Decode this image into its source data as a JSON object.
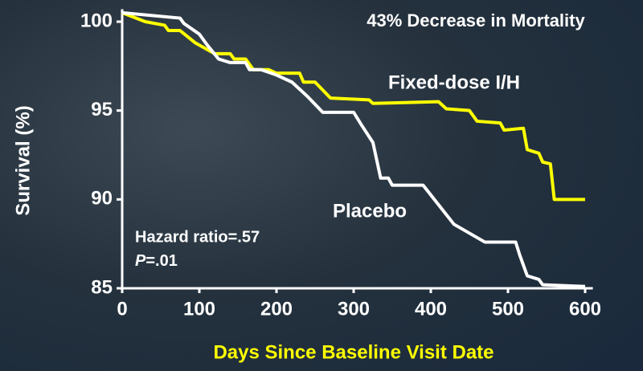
{
  "chart_data": {
    "type": "line",
    "title": "43% Decrease in Mortality",
    "x_label": "Days Since Baseline Visit Date",
    "y_label": "Survival (%)",
    "annotations": [
      "Hazard ratio=.57",
      "P",
      "=.01"
    ],
    "xlim": [
      0,
      610
    ],
    "ylim": [
      85,
      100.7
    ],
    "xticks": [
      0,
      100,
      200,
      300,
      400,
      500,
      600
    ],
    "yticks": [
      85,
      90,
      95,
      100
    ],
    "series": [
      {
        "name": "Fixed-dose I/H",
        "color": "#ffff00",
        "x": [
          0,
          30,
          55,
          60,
          75,
          95,
          120,
          140,
          145,
          160,
          170,
          190,
          200,
          230,
          235,
          250,
          270,
          320,
          325,
          410,
          420,
          450,
          460,
          490,
          495,
          520,
          525,
          540,
          545,
          555,
          560,
          600
        ],
        "values": [
          100.5,
          100,
          99.8,
          99.5,
          99.5,
          98.8,
          98.2,
          98.2,
          97.9,
          97.9,
          97.3,
          97.3,
          97.1,
          97.1,
          96.6,
          96.6,
          95.7,
          95.6,
          95.4,
          95.5,
          95.1,
          95.0,
          94.4,
          94.3,
          93.9,
          94.0,
          92.8,
          92.6,
          92.1,
          92.0,
          90.0,
          90.0
        ]
      },
      {
        "name": "Placebo",
        "color": "#ffffff",
        "x": [
          0,
          75,
          80,
          100,
          110,
          125,
          140,
          160,
          165,
          180,
          200,
          220,
          240,
          260,
          300,
          310,
          325,
          335,
          345,
          350,
          390,
          430,
          470,
          510,
          515,
          525,
          540,
          545,
          600
        ],
        "values": [
          100.5,
          100.2,
          99.9,
          99.3,
          98.7,
          97.9,
          97.7,
          97.7,
          97.3,
          97.3,
          97.0,
          96.6,
          95.8,
          94.9,
          94.9,
          94.2,
          93.2,
          91.2,
          91.2,
          90.8,
          90.8,
          88.6,
          87.6,
          87.6,
          86.9,
          85.7,
          85.5,
          85.2,
          85.1
        ]
      }
    ]
  }
}
